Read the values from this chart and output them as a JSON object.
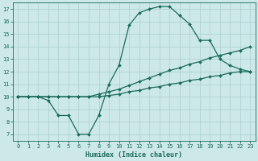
{
  "xlabel": "Humidex (Indice chaleur)",
  "bg_color": "#cce8e8",
  "line_color": "#1a6b5a",
  "grid_color": "#aacfcf",
  "xlim": [
    -0.5,
    23.5
  ],
  "ylim": [
    6.5,
    17.5
  ],
  "xticks": [
    0,
    1,
    2,
    3,
    4,
    5,
    6,
    7,
    8,
    9,
    10,
    11,
    12,
    13,
    14,
    15,
    16,
    17,
    18,
    19,
    20,
    21,
    22,
    23
  ],
  "yticks": [
    7,
    8,
    9,
    10,
    11,
    12,
    13,
    14,
    15,
    16,
    17
  ],
  "line1_x": [
    0,
    1,
    2,
    3,
    4,
    5,
    6,
    7,
    8,
    9,
    10,
    11,
    12,
    13,
    14,
    15,
    16,
    17,
    18,
    19,
    20,
    21,
    22,
    23
  ],
  "line1_y": [
    10,
    10,
    10,
    9.7,
    8.5,
    8.5,
    7.0,
    7.0,
    8.5,
    11.0,
    12.5,
    15.7,
    16.7,
    17.0,
    17.2,
    17.2,
    16.5,
    15.8,
    14.5,
    14.5,
    13.0,
    12.5,
    12.2,
    12.0
  ],
  "line2_x": [
    0,
    1,
    2,
    3,
    4,
    5,
    6,
    7,
    8,
    9,
    10,
    11,
    12,
    13,
    14,
    15,
    16,
    17,
    18,
    19,
    20,
    21,
    22,
    23
  ],
  "line2_y": [
    10,
    10,
    10,
    10,
    10,
    10,
    10,
    10,
    10.2,
    10.4,
    10.6,
    10.9,
    11.2,
    11.5,
    11.8,
    12.1,
    12.3,
    12.6,
    12.8,
    13.1,
    13.3,
    13.5,
    13.7,
    14.0
  ],
  "line3_x": [
    0,
    1,
    2,
    3,
    4,
    5,
    6,
    7,
    8,
    9,
    10,
    11,
    12,
    13,
    14,
    15,
    16,
    17,
    18,
    19,
    20,
    21,
    22,
    23
  ],
  "line3_y": [
    10,
    10,
    10,
    10,
    10,
    10,
    10,
    10,
    10.0,
    10.1,
    10.2,
    10.4,
    10.5,
    10.7,
    10.8,
    11.0,
    11.1,
    11.3,
    11.4,
    11.6,
    11.7,
    11.9,
    12.0,
    12.0
  ]
}
